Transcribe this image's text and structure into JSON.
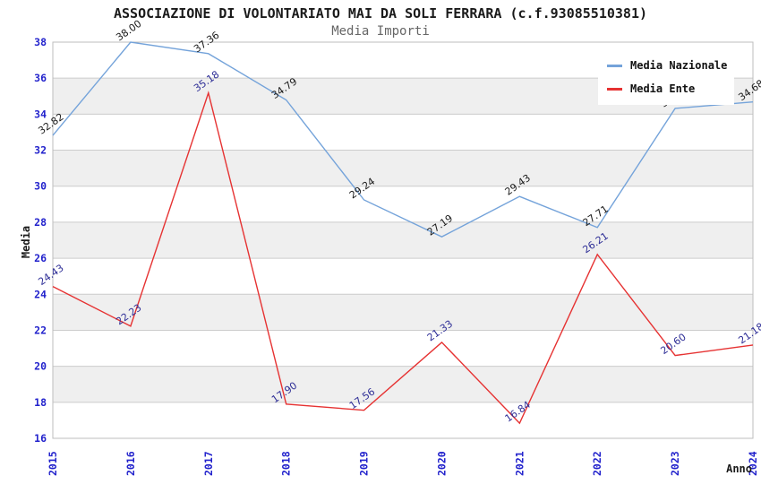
{
  "chart_data": {
    "type": "line",
    "title": "ASSOCIAZIONE DI VOLONTARIATO MAI DA SOLI FERRARA (c.f.93085510381)",
    "subtitle": "Media Importi",
    "x": [
      2015,
      2016,
      2017,
      2018,
      2019,
      2020,
      2021,
      2022,
      2023,
      2024
    ],
    "series": [
      {
        "name": "Media Nazionale",
        "color": "#74a3da",
        "label_color": "#1a1a1a",
        "values": [
          32.82,
          38.0,
          37.36,
          34.79,
          29.24,
          27.19,
          29.43,
          27.71,
          34.32,
          34.68
        ]
      },
      {
        "name": "Media Ente",
        "color": "#e63232",
        "label_color": "#2d2d96",
        "values": [
          24.43,
          22.23,
          35.18,
          17.9,
          17.56,
          21.33,
          16.84,
          26.21,
          20.6,
          21.18
        ]
      }
    ],
    "xlabel": "Anno",
    "ylabel": "Media",
    "ylim": [
      16,
      38
    ],
    "ytick_step": 2,
    "grid": true,
    "legend_position": "top-right",
    "colors": {
      "tick_label": "#2222cc",
      "gridline": "#cccccc",
      "band": "#efefef",
      "plot_border": "#bdbdbd",
      "background": "#ffffff"
    }
  }
}
